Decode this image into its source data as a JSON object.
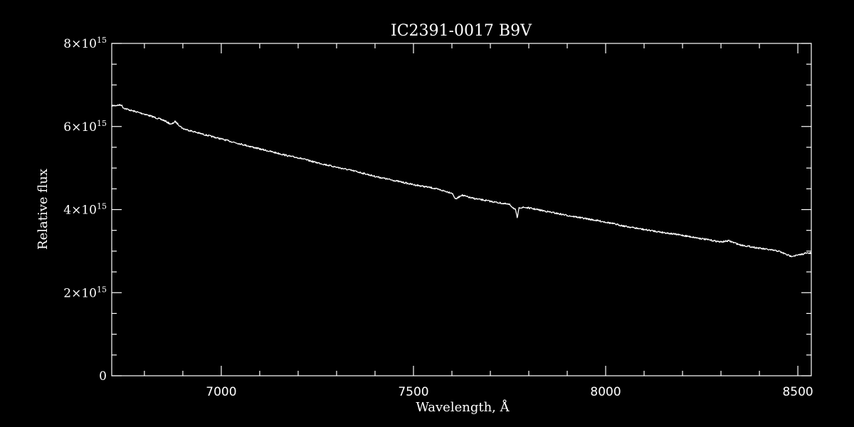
{
  "chart_data": {
    "type": "line",
    "title": "IC2391-0017  B9V",
    "xlabel": "Wavelength, Å",
    "ylabel": "Relative flux",
    "xlim": [
      6715,
      8535
    ],
    "ylim": [
      0,
      8000000000000000.0
    ],
    "grid": false,
    "legend": "none",
    "x_ticks": [
      {
        "value": 7000,
        "label": "7000"
      },
      {
        "value": 7500,
        "label": "7500"
      },
      {
        "value": 8000,
        "label": "8000"
      },
      {
        "value": 8500,
        "label": "8500"
      }
    ],
    "y_ticks": [
      {
        "value": 0,
        "mant": "0",
        "base": "",
        "exp": ""
      },
      {
        "value": 2000000000000000.0,
        "mant": "2×",
        "base": "10",
        "exp": "15"
      },
      {
        "value": 4000000000000000.0,
        "mant": "4×",
        "base": "10",
        "exp": "15"
      },
      {
        "value": 6000000000000000.0,
        "mant": "6×",
        "base": "10",
        "exp": "15"
      },
      {
        "value": 8000000000000000.0,
        "mant": "8×",
        "base": "10",
        "exp": "15"
      }
    ],
    "series": [
      {
        "color": "#ffffff",
        "x": [
          6715,
          6740,
          6745,
          6760,
          6800,
          6850,
          6870,
          6880,
          6900,
          6950,
          7000,
          7050,
          7100,
          7150,
          7180,
          7200,
          7240,
          7300,
          7350,
          7400,
          7450,
          7500,
          7550,
          7600,
          7610,
          7625,
          7650,
          7700,
          7750,
          7765,
          7770,
          7775,
          7790,
          7800,
          7850,
          7900,
          7950,
          8000,
          8050,
          8100,
          8150,
          8200,
          8250,
          8300,
          8320,
          8350,
          8400,
          8450,
          8480,
          8500,
          8520,
          8535
        ],
        "y": [
          6500000000000000.0,
          6520000000000000.0,
          6450000000000000.0,
          6400000000000000.0,
          6300000000000000.0,
          6150000000000000.0,
          6050000000000000.0,
          6120000000000000.0,
          5950000000000000.0,
          5820000000000000.0,
          5700000000000000.0,
          5580000000000000.0,
          5460000000000000.0,
          5350000000000000.0,
          5280000000000000.0,
          5250000000000000.0,
          5150000000000000.0,
          5020000000000000.0,
          4920000000000000.0,
          4800000000000000.0,
          4700000000000000.0,
          4600000000000000.0,
          4520000000000000.0,
          4400000000000000.0,
          4250000000000000.0,
          4350000000000000.0,
          4280000000000000.0,
          4200000000000000.0,
          4120000000000000.0,
          4000000000000000.0,
          3800000000000000.0,
          4050000000000000.0,
          4050000000000000.0,
          4040000000000000.0,
          3950000000000000.0,
          3860000000000000.0,
          3780000000000000.0,
          3700000000000000.0,
          3600000000000000.0,
          3520000000000000.0,
          3450000000000000.0,
          3380000000000000.0,
          3300000000000000.0,
          3220000000000000.0,
          3250000000000000.0,
          3150000000000000.0,
          3070000000000000.0,
          3000000000000000.0,
          2880000000000000.0,
          2900000000000000.0,
          2950000000000000.0,
          2950000000000000.0
        ]
      }
    ]
  }
}
